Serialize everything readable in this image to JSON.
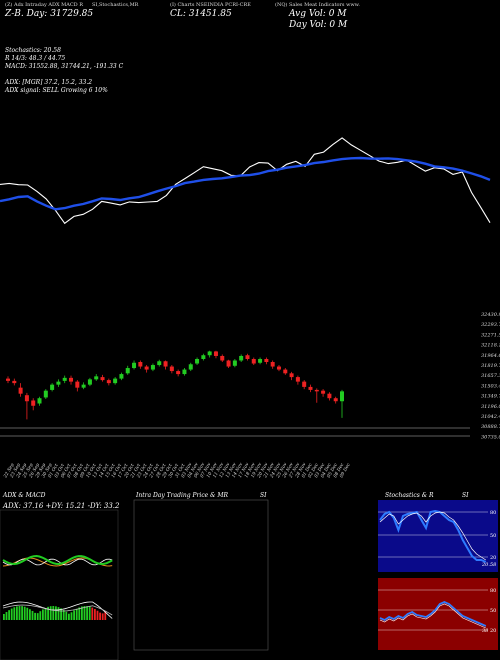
{
  "header": {
    "col1": "(Z) Adx Intraday ADX MACD R",
    "col2": "SI,Stochastics,MR",
    "col3": "(I) Charts NSEINDIA PCRI-CRE",
    "col4": "(NQ) Sales Meat Indicators www.",
    "ohlc_line": "Z-B. Day: 31729.85",
    "close_line": "CL: 31451.85",
    "avg_vol": "Avg Vol: 0 M",
    "day_vol": "Day Vol: 0 M"
  },
  "info": {
    "stoch_line": "Stochastics: 20.58",
    "stoch_vals": "R 14/3: 48.3 / 44.75",
    "macd_line": "MACD: 31552.88, 31744.21, -191.33 C",
    "adx_line": "ADX: [MGR] 37.2, 15.2, 33.2",
    "adx_signal": "ADX signal: SELL Growing 6 10%"
  },
  "price_axis": [
    "32430.94",
    "32293.7",
    "32271.5",
    "32118.1",
    "31964.6",
    "31819.78",
    "31657.3",
    "31503.4",
    "31349.7",
    "31196.06",
    "31042.4",
    "30888.7",
    "30735.08"
  ],
  "dates": [
    "22 Sep",
    "23 Sep",
    "24 Sep",
    "25 Sep",
    "26 Sep",
    "29 Sep",
    "30 Sep",
    "01 Oct",
    "03 Oct",
    "06 Oct",
    "07 Oct",
    "08 Oct",
    "09 Oct",
    "10 Oct",
    "13 Oct",
    "14 Oct",
    "15 Oct",
    "16 Oct",
    "17 Oct",
    "20 Oct",
    "21 Oct",
    "23 Oct",
    "24 Oct",
    "27 Oct",
    "28 Oct",
    "29 Oct",
    "30 Oct",
    "31 Oct",
    "03 Nov",
    "04 Nov",
    "06 Nov",
    "07 Nov",
    "10 Nov",
    "11 Nov",
    "12 Nov",
    "13 Nov",
    "14 Nov",
    "17 Nov",
    "18 Nov",
    "19 Nov",
    "20 Nov",
    "21 Nov",
    "24 Nov",
    "25 Nov",
    "26 Nov",
    "27 Nov",
    "28 Nov",
    "01 Dec",
    "02 Dec",
    "03 Dec",
    "04 Dec",
    "05 Dec",
    "08 Dec",
    "09 Dec"
  ],
  "panels": {
    "adx_title": "ADX & MACD",
    "adx_vals": "ADX: 37.16 +DY: 15.21 -DY: 33.2",
    "intraday_title": "Intra Day Trading Price & MR",
    "intraday_si": "SI",
    "stoch_title": "Stochastics & R",
    "stoch_si": "SI",
    "stoch_levels": [
      "80",
      "50",
      "20"
    ],
    "rsi_levels": [
      "80",
      "50",
      "20"
    ],
    "stoch_last": "20.58",
    "rsi_last": "38"
  },
  "colors": {
    "bull": "#22cc22",
    "bear": "#ee2222",
    "ma": "#1f4fe8",
    "rsi_bg": "#8b0000",
    "stoch_bg": "#0a0a8a"
  },
  "chart_data": {
    "type": "candlestick",
    "price_close_series": [
      31719,
      31726,
      31717,
      31715,
      31670,
      31618,
      31537,
      31447,
      31495,
      31510,
      31545,
      31600,
      31588,
      31576,
      31597,
      31592,
      31596,
      31600,
      31642,
      31720,
      31760,
      31801,
      31843,
      31829,
      31815,
      31783,
      31779,
      31841,
      31872,
      31868,
      31815,
      31860,
      31880,
      31845,
      31930,
      31945,
      31998,
      32045,
      31996,
      31958,
      31920,
      31882,
      31865,
      31874,
      31889,
      31850,
      31812,
      31836,
      31828,
      31789,
      31806,
      31663,
      31558,
      31451
    ],
    "ma_series": [
      31602,
      31615,
      31631,
      31636,
      31600,
      31570,
      31545,
      31553,
      31570,
      31582,
      31601,
      31621,
      31617,
      31610,
      31622,
      31630,
      31650,
      31671,
      31690,
      31707,
      31728,
      31739,
      31751,
      31757,
      31762,
      31770,
      31781,
      31784,
      31795,
      31812,
      31822,
      31836,
      31845,
      31854,
      31868,
      31876,
      31887,
      31896,
      31902,
      31904,
      31900,
      31899,
      31901,
      31896,
      31888,
      31879,
      31864,
      31845,
      31839,
      31830,
      31815,
      31796,
      31776,
      31751
    ],
    "candles": [
      {
        "o": 31620,
        "c": 31590,
        "h": 31650,
        "l": 31560
      },
      {
        "o": 31590,
        "c": 31560,
        "h": 31620,
        "l": 31530
      },
      {
        "o": 31500,
        "c": 31420,
        "h": 31560,
        "l": 31380
      },
      {
        "o": 31400,
        "c": 31320,
        "h": 31430,
        "l": 31080
      },
      {
        "o": 31330,
        "c": 31260,
        "h": 31360,
        "l": 31200
      },
      {
        "o": 31290,
        "c": 31360,
        "h": 31380,
        "l": 31260
      },
      {
        "o": 31370,
        "c": 31460,
        "h": 31480,
        "l": 31350
      },
      {
        "o": 31470,
        "c": 31540,
        "h": 31560,
        "l": 31450
      },
      {
        "o": 31540,
        "c": 31580,
        "h": 31610,
        "l": 31510
      },
      {
        "o": 31590,
        "c": 31630,
        "h": 31660,
        "l": 31560
      },
      {
        "o": 31630,
        "c": 31580,
        "h": 31660,
        "l": 31540
      },
      {
        "o": 31580,
        "c": 31500,
        "h": 31600,
        "l": 31450
      },
      {
        "o": 31500,
        "c": 31540,
        "h": 31570,
        "l": 31480
      },
      {
        "o": 31540,
        "c": 31610,
        "h": 31630,
        "l": 31520
      },
      {
        "o": 31610,
        "c": 31650,
        "h": 31680,
        "l": 31590
      },
      {
        "o": 31640,
        "c": 31600,
        "h": 31670,
        "l": 31580
      },
      {
        "o": 31600,
        "c": 31560,
        "h": 31620,
        "l": 31530
      },
      {
        "o": 31560,
        "c": 31620,
        "h": 31640,
        "l": 31540
      },
      {
        "o": 31620,
        "c": 31680,
        "h": 31700,
        "l": 31600
      },
      {
        "o": 31690,
        "c": 31760,
        "h": 31790,
        "l": 31670
      },
      {
        "o": 31760,
        "c": 31830,
        "h": 31860,
        "l": 31740
      },
      {
        "o": 31840,
        "c": 31780,
        "h": 31860,
        "l": 31750
      },
      {
        "o": 31780,
        "c": 31740,
        "h": 31800,
        "l": 31700
      },
      {
        "o": 31740,
        "c": 31800,
        "h": 31820,
        "l": 31720
      },
      {
        "o": 31800,
        "c": 31850,
        "h": 31870,
        "l": 31780
      },
      {
        "o": 31850,
        "c": 31780,
        "h": 31860,
        "l": 31740
      },
      {
        "o": 31780,
        "c": 31720,
        "h": 31800,
        "l": 31690
      },
      {
        "o": 31720,
        "c": 31680,
        "h": 31740,
        "l": 31650
      },
      {
        "o": 31680,
        "c": 31740,
        "h": 31760,
        "l": 31660
      },
      {
        "o": 31740,
        "c": 31810,
        "h": 31830,
        "l": 31720
      },
      {
        "o": 31820,
        "c": 31880,
        "h": 31900,
        "l": 31800
      },
      {
        "o": 31880,
        "c": 31930,
        "h": 31950,
        "l": 31860
      },
      {
        "o": 31930,
        "c": 31980,
        "h": 31990,
        "l": 31900
      },
      {
        "o": 31980,
        "c": 31920,
        "h": 31990,
        "l": 31890
      },
      {
        "o": 31920,
        "c": 31860,
        "h": 31940,
        "l": 31840
      },
      {
        "o": 31860,
        "c": 31780,
        "h": 31870,
        "l": 31760
      },
      {
        "o": 31790,
        "c": 31860,
        "h": 31880,
        "l": 31770
      },
      {
        "o": 31860,
        "c": 31920,
        "h": 31940,
        "l": 31840
      },
      {
        "o": 31930,
        "c": 31880,
        "h": 31950,
        "l": 31860
      },
      {
        "o": 31880,
        "c": 31820,
        "h": 31900,
        "l": 31800
      },
      {
        "o": 31830,
        "c": 31880,
        "h": 31900,
        "l": 31810
      },
      {
        "o": 31880,
        "c": 31840,
        "h": 31900,
        "l": 31810
      },
      {
        "o": 31840,
        "c": 31780,
        "h": 31860,
        "l": 31750
      },
      {
        "o": 31780,
        "c": 31740,
        "h": 31800,
        "l": 31720
      },
      {
        "o": 31740,
        "c": 31690,
        "h": 31760,
        "l": 31670
      },
      {
        "o": 31690,
        "c": 31640,
        "h": 31710,
        "l": 31600
      },
      {
        "o": 31640,
        "c": 31580,
        "h": 31660,
        "l": 31540
      },
      {
        "o": 31580,
        "c": 31510,
        "h": 31600,
        "l": 31480
      },
      {
        "o": 31510,
        "c": 31470,
        "h": 31540,
        "l": 31440
      },
      {
        "o": 31470,
        "c": 31451,
        "h": 31490,
        "l": 31300
      },
      {
        "o": 31460,
        "c": 31420,
        "h": 31480,
        "l": 31380
      },
      {
        "o": 31420,
        "c": 31360,
        "h": 31440,
        "l": 31330
      },
      {
        "o": 31360,
        "c": 31320,
        "h": 31380,
        "l": 31290
      },
      {
        "o": 31320,
        "c": 31451,
        "h": 31470,
        "l": 31100
      }
    ]
  }
}
